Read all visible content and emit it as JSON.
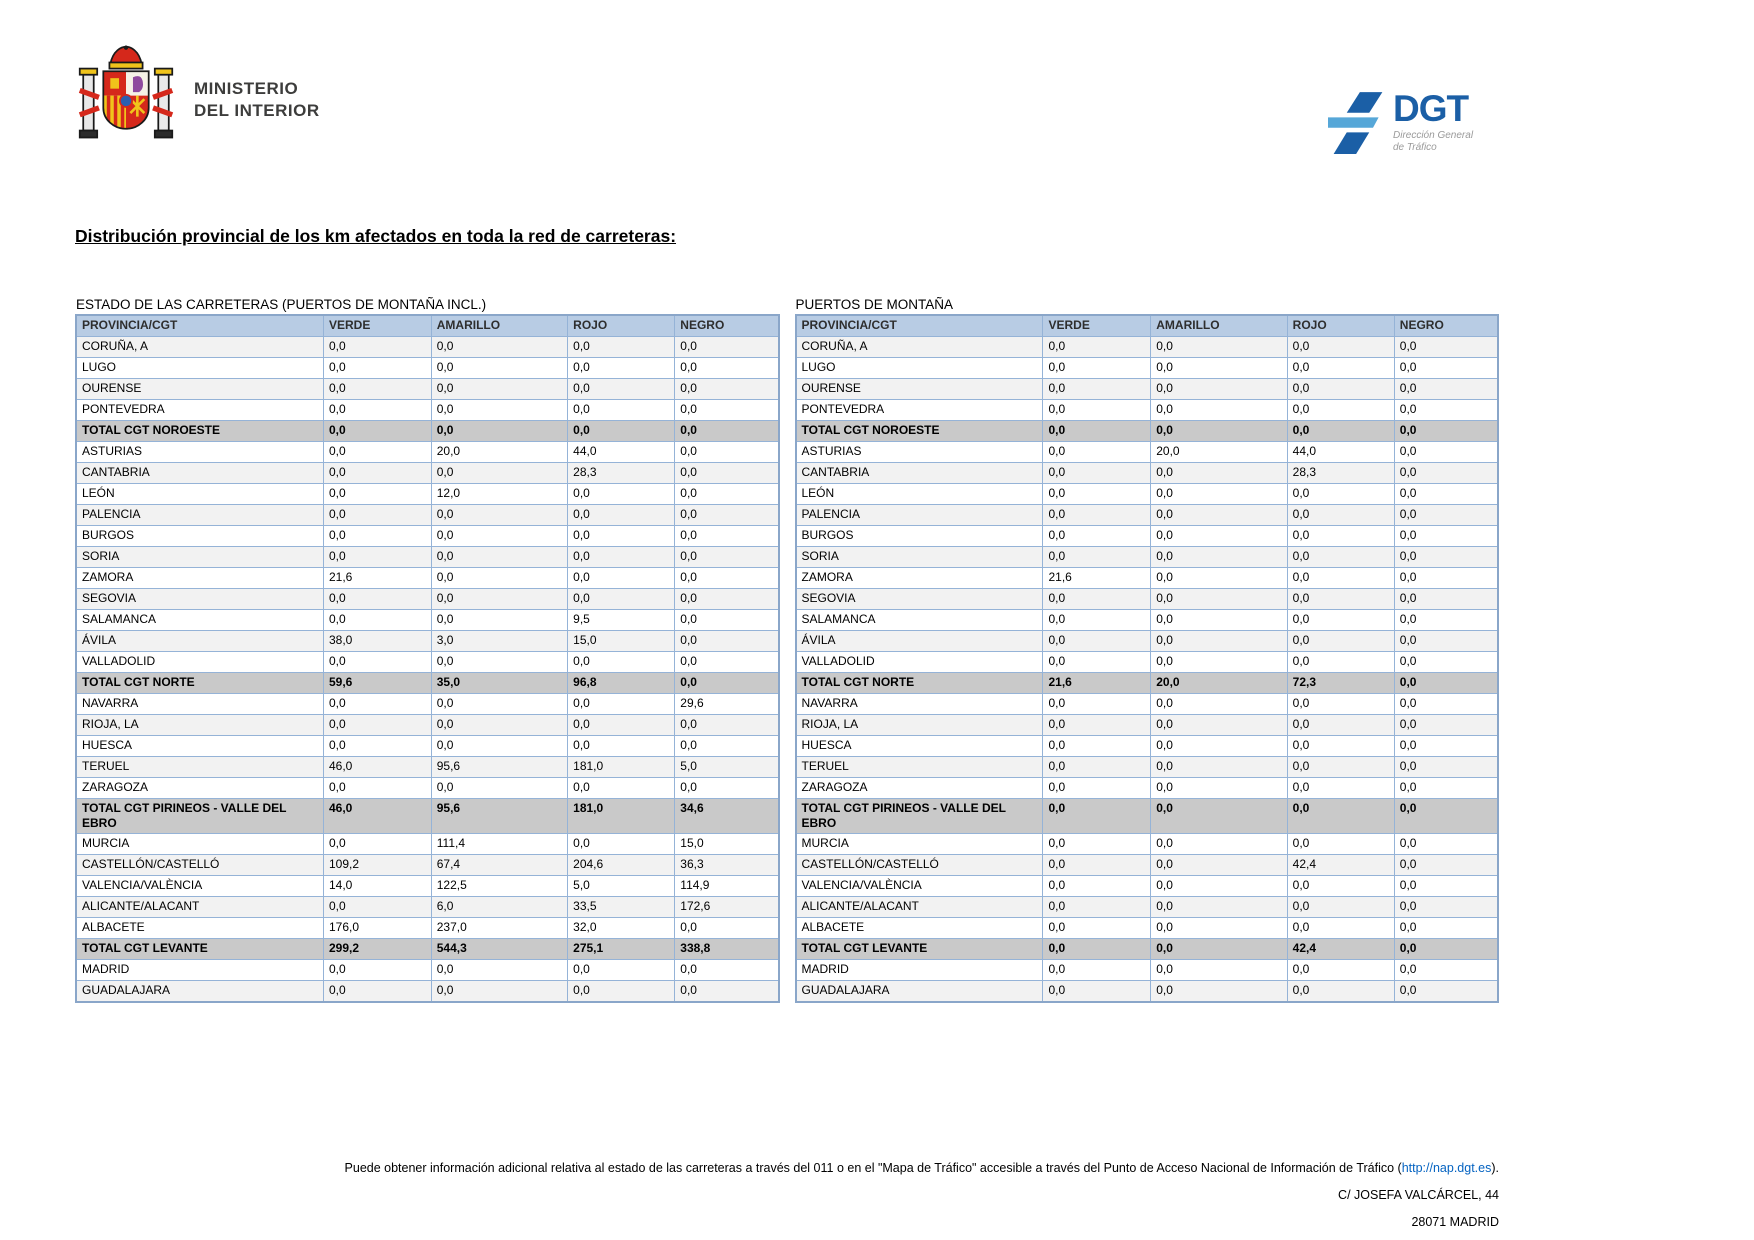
{
  "header": {
    "ministry": {
      "line1": "MINISTERIO",
      "line2": "DEL INTERIOR"
    },
    "dgt": {
      "acronym": "DGT",
      "subtitle_line1": "Dirección General",
      "subtitle_line2": "de Tráfico"
    }
  },
  "title": "Distribución provincial de los km afectados en toda la red de carreteras:",
  "colors": {
    "table_header_bg": "#b8cce4",
    "table_border": "#95b3d7",
    "total_row_bg": "#c9c9c9",
    "alt_row_bg": "#f2f2f2",
    "dgt_blue": "#1b5fa6",
    "dgt_light_blue": "#56a7d8",
    "link_blue": "#0563c1"
  },
  "tables": [
    {
      "caption": "ESTADO DE LAS CARRETERAS (PUERTOS DE MONTAÑA INCL.)",
      "columns": [
        "PROVINCIA/CGT",
        "VERDE",
        "AMARILLO",
        "ROJO",
        "NEGRO"
      ],
      "rows": [
        {
          "label": "CORUÑA, A",
          "values": [
            "0,0",
            "0,0",
            "0,0",
            "0,0"
          ],
          "total": false
        },
        {
          "label": "LUGO",
          "values": [
            "0,0",
            "0,0",
            "0,0",
            "0,0"
          ],
          "total": false
        },
        {
          "label": "OURENSE",
          "values": [
            "0,0",
            "0,0",
            "0,0",
            "0,0"
          ],
          "total": false
        },
        {
          "label": "PONTEVEDRA",
          "values": [
            "0,0",
            "0,0",
            "0,0",
            "0,0"
          ],
          "total": false
        },
        {
          "label": "TOTAL CGT NOROESTE",
          "values": [
            "0,0",
            "0,0",
            "0,0",
            "0,0"
          ],
          "total": true
        },
        {
          "label": "ASTURIAS",
          "values": [
            "0,0",
            "20,0",
            "44,0",
            "0,0"
          ],
          "total": false
        },
        {
          "label": "CANTABRIA",
          "values": [
            "0,0",
            "0,0",
            "28,3",
            "0,0"
          ],
          "total": false
        },
        {
          "label": "LEÓN",
          "values": [
            "0,0",
            "12,0",
            "0,0",
            "0,0"
          ],
          "total": false
        },
        {
          "label": "PALENCIA",
          "values": [
            "0,0",
            "0,0",
            "0,0",
            "0,0"
          ],
          "total": false
        },
        {
          "label": "BURGOS",
          "values": [
            "0,0",
            "0,0",
            "0,0",
            "0,0"
          ],
          "total": false
        },
        {
          "label": "SORIA",
          "values": [
            "0,0",
            "0,0",
            "0,0",
            "0,0"
          ],
          "total": false
        },
        {
          "label": "ZAMORA",
          "values": [
            "21,6",
            "0,0",
            "0,0",
            "0,0"
          ],
          "total": false
        },
        {
          "label": "SEGOVIA",
          "values": [
            "0,0",
            "0,0",
            "0,0",
            "0,0"
          ],
          "total": false
        },
        {
          "label": "SALAMANCA",
          "values": [
            "0,0",
            "0,0",
            "9,5",
            "0,0"
          ],
          "total": false
        },
        {
          "label": "ÁVILA",
          "values": [
            "38,0",
            "3,0",
            "15,0",
            "0,0"
          ],
          "total": false
        },
        {
          "label": "VALLADOLID",
          "values": [
            "0,0",
            "0,0",
            "0,0",
            "0,0"
          ],
          "total": false
        },
        {
          "label": "TOTAL CGT NORTE",
          "values": [
            "59,6",
            "35,0",
            "96,8",
            "0,0"
          ],
          "total": true
        },
        {
          "label": "NAVARRA",
          "values": [
            "0,0",
            "0,0",
            "0,0",
            "29,6"
          ],
          "total": false
        },
        {
          "label": "RIOJA, LA",
          "values": [
            "0,0",
            "0,0",
            "0,0",
            "0,0"
          ],
          "total": false
        },
        {
          "label": "HUESCA",
          "values": [
            "0,0",
            "0,0",
            "0,0",
            "0,0"
          ],
          "total": false
        },
        {
          "label": "TERUEL",
          "values": [
            "46,0",
            "95,6",
            "181,0",
            "5,0"
          ],
          "total": false
        },
        {
          "label": "ZARAGOZA",
          "values": [
            "0,0",
            "0,0",
            "0,0",
            "0,0"
          ],
          "total": false
        },
        {
          "label": "TOTAL CGT PIRINEOS - VALLE DEL EBRO",
          "values": [
            "46,0",
            "95,6",
            "181,0",
            "34,6"
          ],
          "total": true
        },
        {
          "label": "MURCIA",
          "values": [
            "0,0",
            "111,4",
            "0,0",
            "15,0"
          ],
          "total": false
        },
        {
          "label": "CASTELLÓN/CASTELLÓ",
          "values": [
            "109,2",
            "67,4",
            "204,6",
            "36,3"
          ],
          "total": false
        },
        {
          "label": "VALENCIA/VALÈNCIA",
          "values": [
            "14,0",
            "122,5",
            "5,0",
            "114,9"
          ],
          "total": false
        },
        {
          "label": "ALICANTE/ALACANT",
          "values": [
            "0,0",
            "6,0",
            "33,5",
            "172,6"
          ],
          "total": false
        },
        {
          "label": "ALBACETE",
          "values": [
            "176,0",
            "237,0",
            "32,0",
            "0,0"
          ],
          "total": false
        },
        {
          "label": "TOTAL CGT LEVANTE",
          "values": [
            "299,2",
            "544,3",
            "275,1",
            "338,8"
          ],
          "total": true
        },
        {
          "label": "MADRID",
          "values": [
            "0,0",
            "0,0",
            "0,0",
            "0,0"
          ],
          "total": false
        },
        {
          "label": "GUADALAJARA",
          "values": [
            "0,0",
            "0,0",
            "0,0",
            "0,0"
          ],
          "total": false
        }
      ]
    },
    {
      "caption": "PUERTOS DE MONTAÑA",
      "columns": [
        "PROVINCIA/CGT",
        "VERDE",
        "AMARILLO",
        "ROJO",
        "NEGRO"
      ],
      "rows": [
        {
          "label": "CORUÑA, A",
          "values": [
            "0,0",
            "0,0",
            "0,0",
            "0,0"
          ],
          "total": false
        },
        {
          "label": "LUGO",
          "values": [
            "0,0",
            "0,0",
            "0,0",
            "0,0"
          ],
          "total": false
        },
        {
          "label": "OURENSE",
          "values": [
            "0,0",
            "0,0",
            "0,0",
            "0,0"
          ],
          "total": false
        },
        {
          "label": "PONTEVEDRA",
          "values": [
            "0,0",
            "0,0",
            "0,0",
            "0,0"
          ],
          "total": false
        },
        {
          "label": "TOTAL CGT NOROESTE",
          "values": [
            "0,0",
            "0,0",
            "0,0",
            "0,0"
          ],
          "total": true
        },
        {
          "label": "ASTURIAS",
          "values": [
            "0,0",
            "20,0",
            "44,0",
            "0,0"
          ],
          "total": false
        },
        {
          "label": "CANTABRIA",
          "values": [
            "0,0",
            "0,0",
            "28,3",
            "0,0"
          ],
          "total": false
        },
        {
          "label": "LEÓN",
          "values": [
            "0,0",
            "0,0",
            "0,0",
            "0,0"
          ],
          "total": false
        },
        {
          "label": "PALENCIA",
          "values": [
            "0,0",
            "0,0",
            "0,0",
            "0,0"
          ],
          "total": false
        },
        {
          "label": "BURGOS",
          "values": [
            "0,0",
            "0,0",
            "0,0",
            "0,0"
          ],
          "total": false
        },
        {
          "label": "SORIA",
          "values": [
            "0,0",
            "0,0",
            "0,0",
            "0,0"
          ],
          "total": false
        },
        {
          "label": "ZAMORA",
          "values": [
            "21,6",
            "0,0",
            "0,0",
            "0,0"
          ],
          "total": false
        },
        {
          "label": "SEGOVIA",
          "values": [
            "0,0",
            "0,0",
            "0,0",
            "0,0"
          ],
          "total": false
        },
        {
          "label": "SALAMANCA",
          "values": [
            "0,0",
            "0,0",
            "0,0",
            "0,0"
          ],
          "total": false
        },
        {
          "label": "ÁVILA",
          "values": [
            "0,0",
            "0,0",
            "0,0",
            "0,0"
          ],
          "total": false
        },
        {
          "label": "VALLADOLID",
          "values": [
            "0,0",
            "0,0",
            "0,0",
            "0,0"
          ],
          "total": false
        },
        {
          "label": "TOTAL CGT NORTE",
          "values": [
            "21,6",
            "20,0",
            "72,3",
            "0,0"
          ],
          "total": true
        },
        {
          "label": "NAVARRA",
          "values": [
            "0,0",
            "0,0",
            "0,0",
            "0,0"
          ],
          "total": false
        },
        {
          "label": "RIOJA, LA",
          "values": [
            "0,0",
            "0,0",
            "0,0",
            "0,0"
          ],
          "total": false
        },
        {
          "label": "HUESCA",
          "values": [
            "0,0",
            "0,0",
            "0,0",
            "0,0"
          ],
          "total": false
        },
        {
          "label": "TERUEL",
          "values": [
            "0,0",
            "0,0",
            "0,0",
            "0,0"
          ],
          "total": false
        },
        {
          "label": "ZARAGOZA",
          "values": [
            "0,0",
            "0,0",
            "0,0",
            "0,0"
          ],
          "total": false
        },
        {
          "label": "TOTAL CGT PIRINEOS - VALLE DEL EBRO",
          "values": [
            "0,0",
            "0,0",
            "0,0",
            "0,0"
          ],
          "total": true
        },
        {
          "label": "MURCIA",
          "values": [
            "0,0",
            "0,0",
            "0,0",
            "0,0"
          ],
          "total": false
        },
        {
          "label": "CASTELLÓN/CASTELLÓ",
          "values": [
            "0,0",
            "0,0",
            "42,4",
            "0,0"
          ],
          "total": false
        },
        {
          "label": "VALENCIA/VALÈNCIA",
          "values": [
            "0,0",
            "0,0",
            "0,0",
            "0,0"
          ],
          "total": false
        },
        {
          "label": "ALICANTE/ALACANT",
          "values": [
            "0,0",
            "0,0",
            "0,0",
            "0,0"
          ],
          "total": false
        },
        {
          "label": "ALBACETE",
          "values": [
            "0,0",
            "0,0",
            "0,0",
            "0,0"
          ],
          "total": false
        },
        {
          "label": "TOTAL CGT LEVANTE",
          "values": [
            "0,0",
            "0,0",
            "42,4",
            "0,0"
          ],
          "total": true
        },
        {
          "label": "MADRID",
          "values": [
            "0,0",
            "0,0",
            "0,0",
            "0,0"
          ],
          "total": false
        },
        {
          "label": "GUADALAJARA",
          "values": [
            "0,0",
            "0,0",
            "0,0",
            "0,0"
          ],
          "total": false
        }
      ]
    }
  ],
  "footer": {
    "note_before": "Puede obtener información adicional relativa al estado de las carreteras a través del 011 o en el \"Mapa de Tráfico\" accesible a través del Punto de Acceso Nacional de Información de Tráfico (",
    "link": "http://nap.dgt.es",
    "note_after": ").",
    "address": "C/ JOSEFA VALCÁRCEL, 44",
    "city": "28071 MADRID"
  }
}
